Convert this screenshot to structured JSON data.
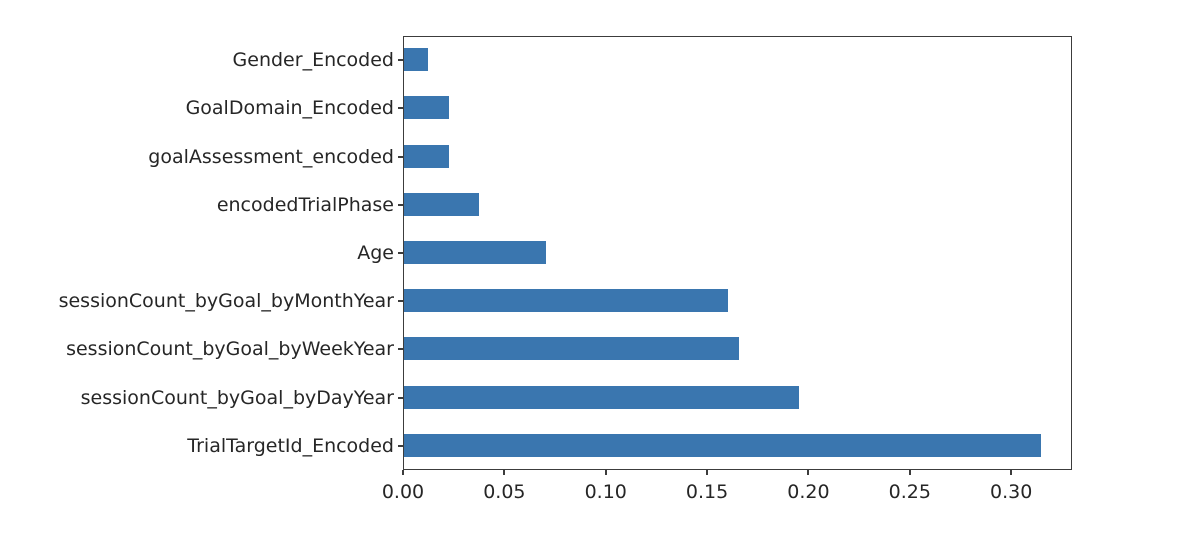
{
  "chart_data": {
    "type": "bar",
    "orientation": "horizontal",
    "title": "",
    "xlabel": "",
    "ylabel": "",
    "categories": [
      "Gender_Encoded",
      "GoalDomain_Encoded",
      "goalAssessment_encoded",
      "encodedTrialPhase",
      "Age",
      "sessionCount_byGoal_byMonthYear",
      "sessionCount_byGoal_byWeekYear",
      "sessionCount_byGoal_byDayYear",
      "TrialTargetId_Encoded"
    ],
    "values": [
      0.012,
      0.022,
      0.022,
      0.037,
      0.07,
      0.16,
      0.165,
      0.195,
      0.314
    ],
    "x_ticks": [
      0.0,
      0.05,
      0.1,
      0.15,
      0.2,
      0.25,
      0.3
    ],
    "x_tick_labels": [
      "0.00",
      "0.05",
      "0.10",
      "0.15",
      "0.20",
      "0.25",
      "0.30"
    ],
    "xlim": [
      0,
      0.33
    ],
    "grid": false,
    "legend": null,
    "bar_color": "#3a76af",
    "axis_color": "#3c3c3c",
    "text_color": "#262626",
    "background_color": "#ffffff"
  }
}
